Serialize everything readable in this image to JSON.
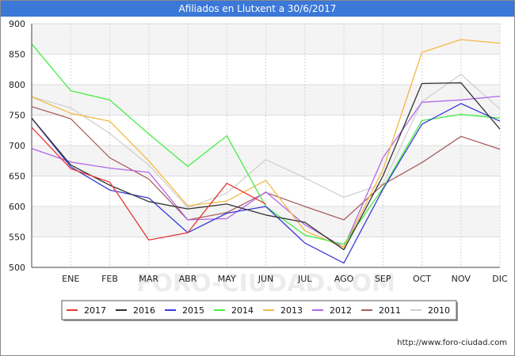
{
  "chart_data": {
    "type": "line",
    "title": "Afiliados en Llutxent a 30/6/2017",
    "categories": [
      "",
      "ENE",
      "FEB",
      "MAR",
      "ABR",
      "MAY",
      "JUN",
      "JUL",
      "AGO",
      "SEP",
      "OCT",
      "NOV",
      "DIC"
    ],
    "ylim": [
      500,
      900
    ],
    "yticks": [
      500,
      550,
      600,
      650,
      700,
      750,
      800,
      850,
      900
    ],
    "grid": true,
    "legend_position": "bottom",
    "watermark": "FORO-CIUDAD.COM",
    "series": [
      {
        "name": "2017",
        "color": "#e53935",
        "values": [
          730,
          662,
          640,
          545,
          557,
          638,
          604,
          null,
          null,
          null,
          null,
          null,
          null
        ]
      },
      {
        "name": "2016",
        "color": "#333333",
        "values": [
          745,
          668,
          635,
          608,
          596,
          604,
          586,
          574,
          529,
          650,
          802,
          803,
          727
        ]
      },
      {
        "name": "2015",
        "color": "#3a3ad8",
        "values": [
          745,
          665,
          627,
          614,
          557,
          589,
          600,
          540,
          507,
          628,
          735,
          769,
          740
        ]
      },
      {
        "name": "2014",
        "color": "#44ee44",
        "values": [
          867,
          790,
          775,
          719,
          666,
          716,
          600,
          553,
          538,
          630,
          741,
          751,
          745
        ]
      },
      {
        "name": "2013",
        "color": "#f4b942",
        "values": [
          780,
          753,
          740,
          675,
          601,
          609,
          643,
          560,
          533,
          660,
          853,
          874,
          868
        ]
      },
      {
        "name": "2012",
        "color": "#b366e8",
        "values": [
          695,
          673,
          663,
          656,
          578,
          580,
          624,
          570,
          533,
          680,
          771,
          775,
          781
        ]
      },
      {
        "name": "2011",
        "color": "#a86060",
        "values": [
          764,
          744,
          680,
          645,
          578,
          590,
          623,
          600,
          578,
          636,
          672,
          715,
          694
        ]
      },
      {
        "name": "2010",
        "color": "#d0d0d0",
        "values": [
          780,
          762,
          720,
          668,
          598,
          622,
          677,
          647,
          615,
          637,
          772,
          817,
          760
        ]
      }
    ]
  },
  "footer": {
    "url": "http://www.foro-ciudad.com"
  }
}
